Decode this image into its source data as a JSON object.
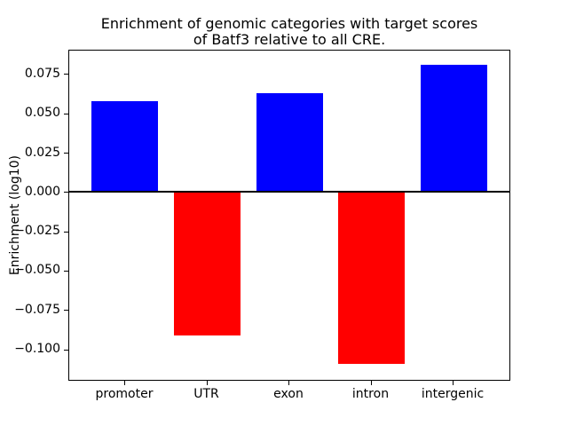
{
  "chart_data": {
    "type": "bar",
    "title": "Enrichment of genomic categories with target scores of Batf3 relative to all CRE.",
    "title_lines": [
      "Enrichment of genomic categories with target scores",
      "of Batf3 relative to all CRE."
    ],
    "xlabel": "",
    "ylabel": "Enrichment (log10)",
    "categories": [
      "promoter",
      "UTR",
      "exon",
      "intron",
      "intergenic"
    ],
    "values": [
      0.058,
      -0.091,
      0.063,
      -0.109,
      0.081
    ],
    "bar_colors": [
      "#0000ff",
      "#ff0000",
      "#0000ff",
      "#ff0000",
      "#0000ff"
    ],
    "positive_color": "#0000ff",
    "negative_color": "#ff0000",
    "ylim": [
      -0.12,
      0.0905
    ],
    "yticks": {
      "values": [
        0.075,
        0.05,
        0.025,
        0.0,
        -0.025,
        -0.05,
        -0.075,
        -0.1
      ],
      "labels": [
        "0.075",
        "0.050",
        "0.025",
        "0.000",
        "−0.025",
        "−0.050",
        "−0.075",
        "−0.100"
      ]
    },
    "grid": false,
    "legend": null,
    "zero_line": true,
    "axis_color": "#000000",
    "background_color": "#ffffff"
  }
}
